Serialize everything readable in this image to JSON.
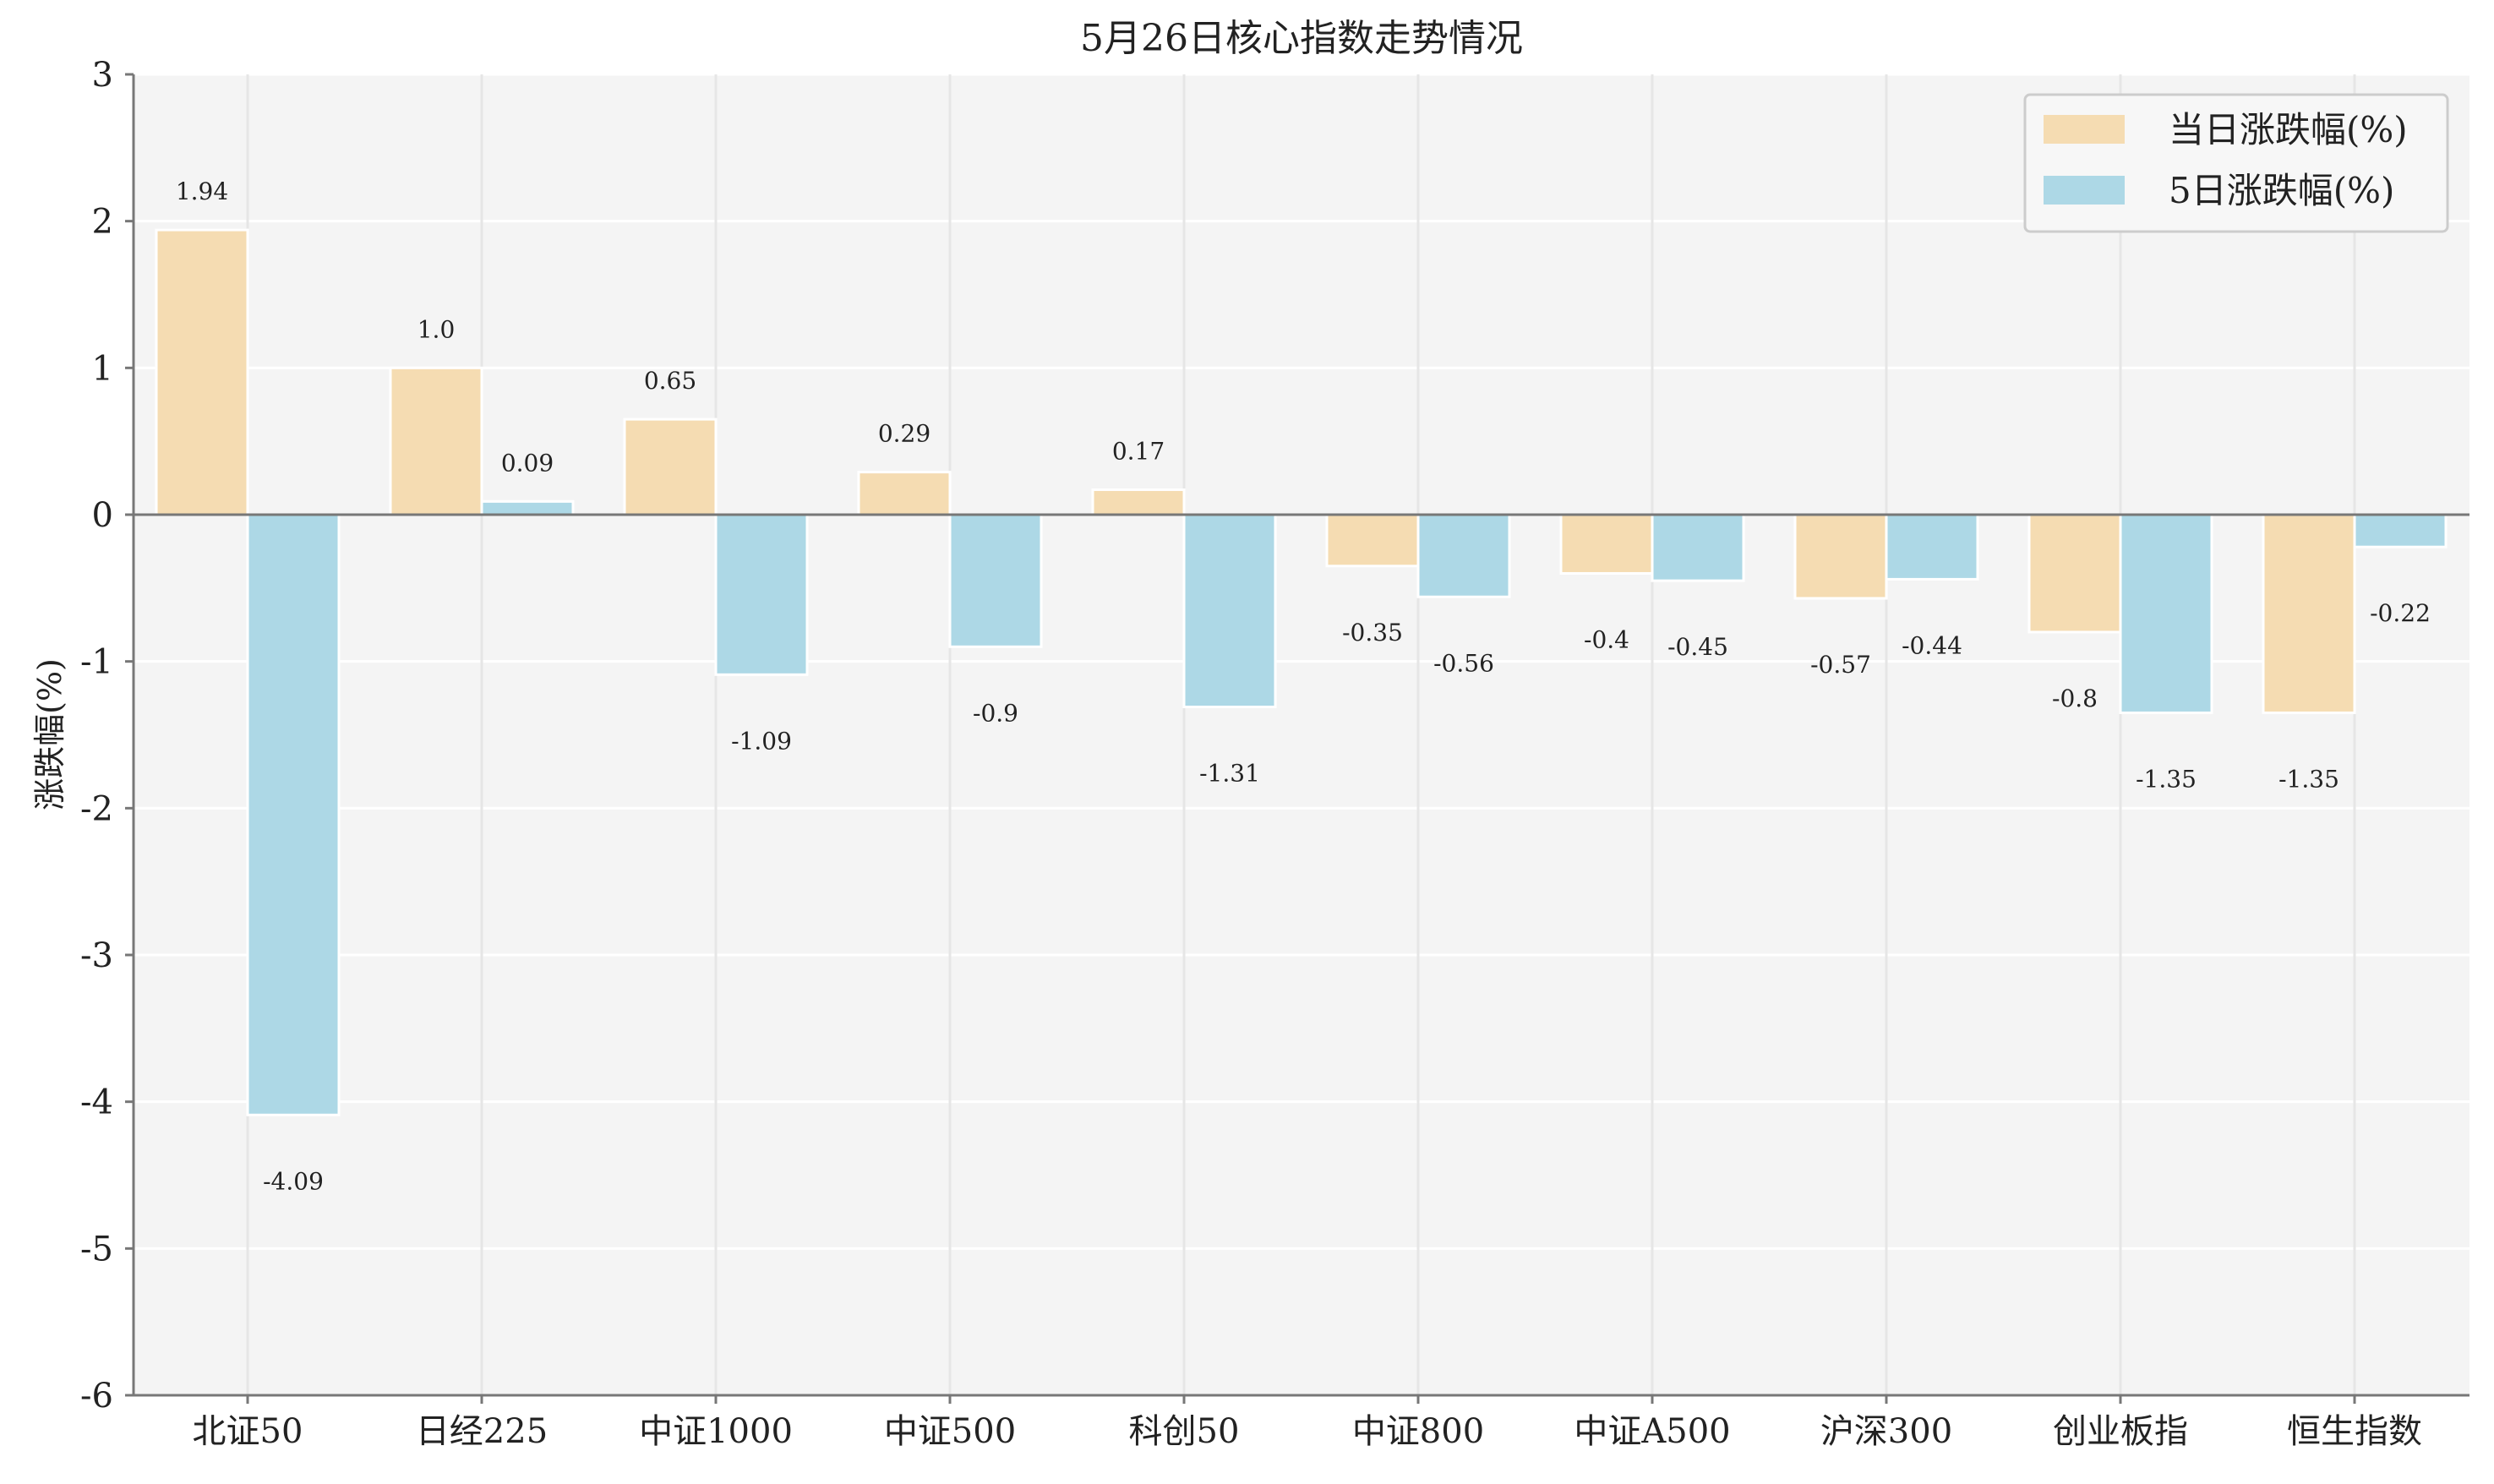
{
  "chart_data": {
    "type": "bar",
    "title": "5月26日核心指数走势情况",
    "xlabel": "",
    "ylabel": "涨跌幅(%)",
    "ylim": [
      -6,
      3
    ],
    "yticks": [
      3,
      2,
      1,
      0,
      -1,
      -2,
      -3,
      -4,
      -5,
      -6
    ],
    "grid": true,
    "legend_position": "top-right",
    "categories": [
      "北证50",
      "日经225",
      "中证1000",
      "中证500",
      "科创50",
      "中证800",
      "中证A500",
      "沪深300",
      "创业板指",
      "恒生指数"
    ],
    "series": [
      {
        "name": "当日涨跌幅(%)",
        "color": "#f5dcb2",
        "values": [
          1.94,
          1.0,
          0.65,
          0.29,
          0.17,
          -0.35,
          -0.4,
          -0.57,
          -0.8,
          -1.35
        ],
        "labels": [
          "1.94",
          "1.0",
          "0.65",
          "0.29",
          "0.17",
          "-0.35",
          "-0.4",
          "-0.57",
          "-0.8",
          "-1.35"
        ]
      },
      {
        "name": "5日涨跌幅(%)",
        "color": "#add8e6",
        "values": [
          -4.09,
          0.09,
          -1.09,
          -0.9,
          -1.31,
          -0.56,
          -0.45,
          -0.44,
          -1.35,
          -0.22
        ],
        "labels": [
          "-4.09",
          "0.09",
          "-1.09",
          "-0.9",
          "-1.31",
          "-0.56",
          "-0.45",
          "-0.44",
          "-1.35",
          "-0.22"
        ]
      }
    ]
  }
}
